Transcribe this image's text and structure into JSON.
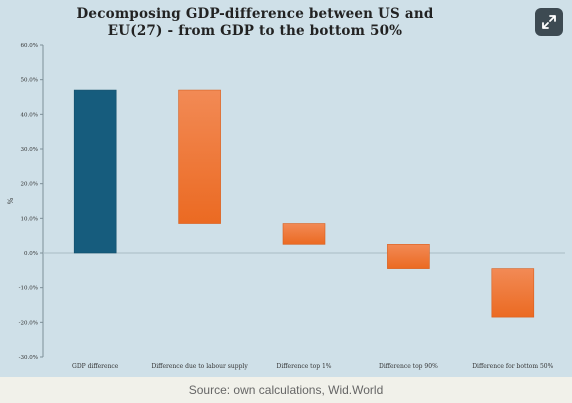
{
  "header": {
    "title": "Decomposing GDP-difference between US and EU(27) - from GDP to the bottom 50%",
    "expand_icon": "expand-arrows-icon"
  },
  "footer": {
    "source": "Source: own calculations, Wid.World"
  },
  "colors": {
    "background": "#cfe0e8",
    "first_bar": "#165c7d",
    "other_bars": "#f07838"
  },
  "chart_data": {
    "type": "waterfall",
    "title": "Decomposing GDP-difference between US and EU(27) - from GDP to the bottom 50%",
    "ylabel": "%",
    "xlabel": "",
    "ylim": [
      -30,
      60
    ],
    "yticks": [
      "-30.0%",
      "-20.0%",
      "-10.0%",
      "0.0%",
      "10.0%",
      "20.0%",
      "30.0%",
      "40.0%",
      "50.0%",
      "60.0%"
    ],
    "ytick_values": [
      -30,
      -20,
      -10,
      0,
      10,
      20,
      30,
      40,
      50,
      60
    ],
    "categories": [
      "GDP difference",
      "Difference due to labour supply",
      "Difference top 1%",
      "Difference top 90%",
      "Difference for bottom 50%"
    ],
    "bars": [
      {
        "category": "GDP difference",
        "start": 0,
        "end": 47,
        "kind": "total"
      },
      {
        "category": "Difference due to labour supply",
        "start": 47,
        "end": 8.5,
        "kind": "step"
      },
      {
        "category": "Difference top 1%",
        "start": 8.5,
        "end": 2.5,
        "kind": "step"
      },
      {
        "category": "Difference top 90%",
        "start": 2.5,
        "end": -4.5,
        "kind": "step"
      },
      {
        "category": "Difference for bottom 50%",
        "start": -4.5,
        "end": -18.5,
        "kind": "step"
      }
    ],
    "grid": false,
    "zero_line": true
  }
}
